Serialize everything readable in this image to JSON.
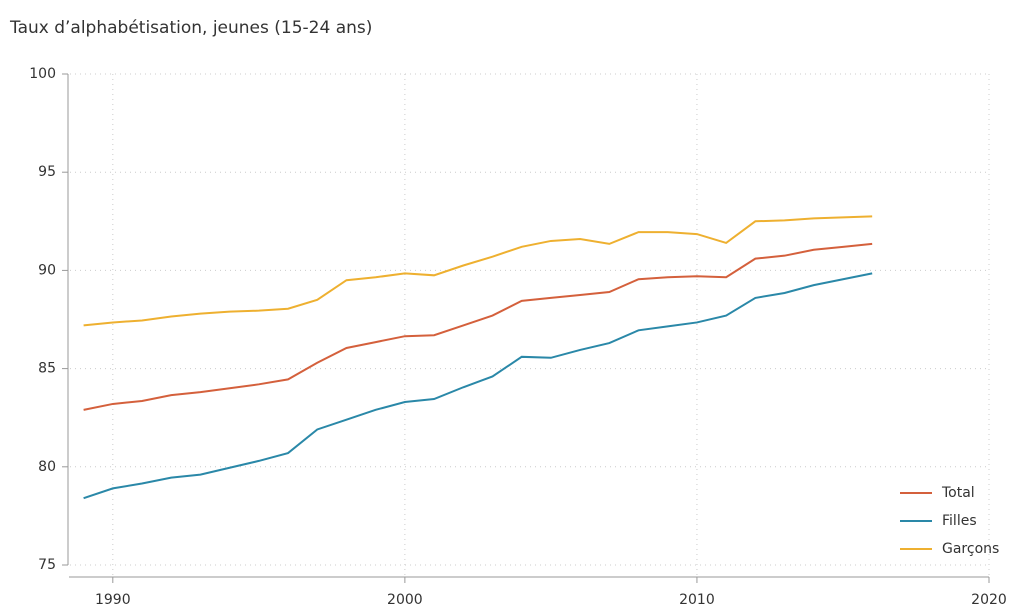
{
  "chart_data": {
    "type": "line",
    "title": "Taux d’alphabétisation, jeunes (15-24 ans)",
    "x": [
      1989,
      1990,
      1991,
      1992,
      1993,
      1994,
      1995,
      1996,
      1997,
      1998,
      1999,
      2000,
      2001,
      2002,
      2003,
      2004,
      2005,
      2006,
      2007,
      2008,
      2009,
      2010,
      2011,
      2012,
      2013,
      2014,
      2015,
      2016
    ],
    "series": [
      {
        "name": "Total",
        "color": "#d4603c",
        "values": [
          82.9,
          83.2,
          83.35,
          83.65,
          83.8,
          84.0,
          84.2,
          84.45,
          85.3,
          86.05,
          86.35,
          86.65,
          86.7,
          87.2,
          87.7,
          88.45,
          88.6,
          88.75,
          88.9,
          89.55,
          89.65,
          89.7,
          89.65,
          90.6,
          90.75,
          91.05,
          91.2,
          91.35
        ]
      },
      {
        "name": "Filles",
        "color": "#2a88a8",
        "values": [
          78.4,
          78.9,
          79.15,
          79.45,
          79.6,
          79.95,
          80.3,
          80.7,
          81.9,
          82.4,
          82.9,
          83.3,
          83.45,
          84.05,
          84.6,
          85.6,
          85.55,
          85.95,
          86.3,
          86.95,
          87.15,
          87.35,
          87.7,
          88.6,
          88.85,
          89.25,
          89.55,
          89.85
        ]
      },
      {
        "name": "Garçons",
        "color": "#eeb030",
        "values": [
          87.2,
          87.35,
          87.45,
          87.65,
          87.8,
          87.9,
          87.95,
          88.05,
          88.5,
          89.5,
          89.65,
          89.85,
          89.75,
          90.25,
          90.7,
          91.2,
          91.5,
          91.6,
          91.35,
          91.95,
          91.95,
          91.85,
          91.4,
          92.5,
          92.55,
          92.65,
          92.7,
          92.75
        ]
      }
    ],
    "xlim": [
      1988.5,
      2020
    ],
    "xticks": [
      1990,
      2000,
      2010,
      2020
    ],
    "ylim": [
      75,
      100
    ],
    "yticks": [
      75,
      80,
      85,
      90,
      95,
      100
    ],
    "grid": true,
    "legend": "bottom-right"
  }
}
